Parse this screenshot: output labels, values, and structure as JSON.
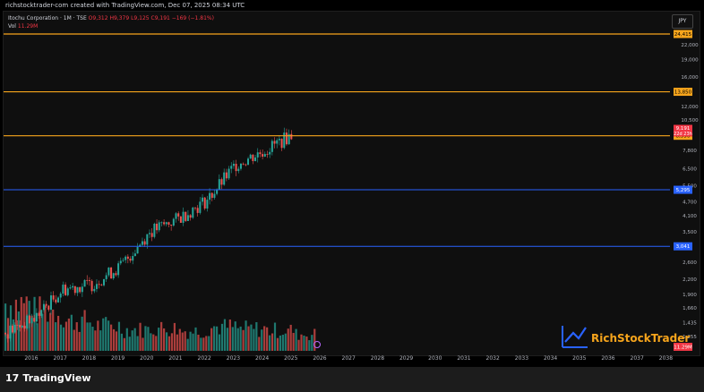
{
  "header": {
    "attribution": "richstocktrader-com created with TradingView.com, Dec 07, 2025 08:34 UTC"
  },
  "legend": {
    "symbol": "Itochu Corporation · 1M · TSE",
    "ohlc": "O9,312  H9,379  L9,125  C9,191  −169 (−1.81%)",
    "volume_label": "Vol",
    "volume_value": "11.29M"
  },
  "currency": "JPY",
  "brand": {
    "watermark": "RichStockTrader",
    "footer_logo": "TradingView",
    "footer_mark": "17"
  },
  "colors": {
    "up": "#26a69a",
    "down": "#ef5350",
    "orange_line": "#f7a51c",
    "blue_line": "#2962ff",
    "price_tag": "#f23645",
    "watermark_blue": "#2962ff",
    "watermark_orange": "#f7a51c"
  },
  "chart_data": {
    "type": "candlestick",
    "x_ticks": [
      "2016",
      "2017",
      "2018",
      "2019",
      "2020",
      "2021",
      "2022",
      "2023",
      "2024",
      "2025",
      "2026",
      "2027",
      "2028",
      "2029",
      "2030",
      "2031",
      "2032",
      "2033",
      "2034",
      "2035",
      "2036",
      "2037",
      "2038"
    ],
    "y_ticks": [
      1255,
      1435,
      1660,
      1900,
      2200,
      2600,
      3500,
      4100,
      4700,
      5500,
      6500,
      7800,
      10500,
      12000,
      16000,
      19000,
      22000
    ],
    "y_scale": "log",
    "horizontal_levels": [
      {
        "value": 24415,
        "label": "24,415",
        "color": "orange"
      },
      {
        "value": 13850,
        "label": "13,850",
        "color": "orange"
      },
      {
        "value": 8996,
        "label": "8,996",
        "color": "orange"
      },
      {
        "value": 5295,
        "label": "5,295",
        "color": "blue"
      },
      {
        "value": 3041,
        "label": "3,041",
        "color": "blue"
      }
    ],
    "last_price": {
      "label": "9,191",
      "countdown": "22d 23h"
    },
    "volume_tag": "11.29M",
    "price_path": [
      [
        "2016",
        1300
      ],
      [
        "2017",
        1500
      ],
      [
        "2018",
        2000
      ],
      [
        "2019",
        2100
      ],
      [
        "2020",
        2500
      ],
      [
        "2021",
        3500
      ],
      [
        "2022",
        4000
      ],
      [
        "2023",
        4800
      ],
      [
        "2024",
        6800
      ],
      [
        "2025",
        7800
      ],
      [
        "2026",
        9191
      ]
    ],
    "volume_relative": [
      0.72,
      0.6,
      0.45,
      0.38,
      0.32,
      0.34,
      0.3,
      0.36,
      0.33,
      0.31,
      0.25
    ]
  }
}
